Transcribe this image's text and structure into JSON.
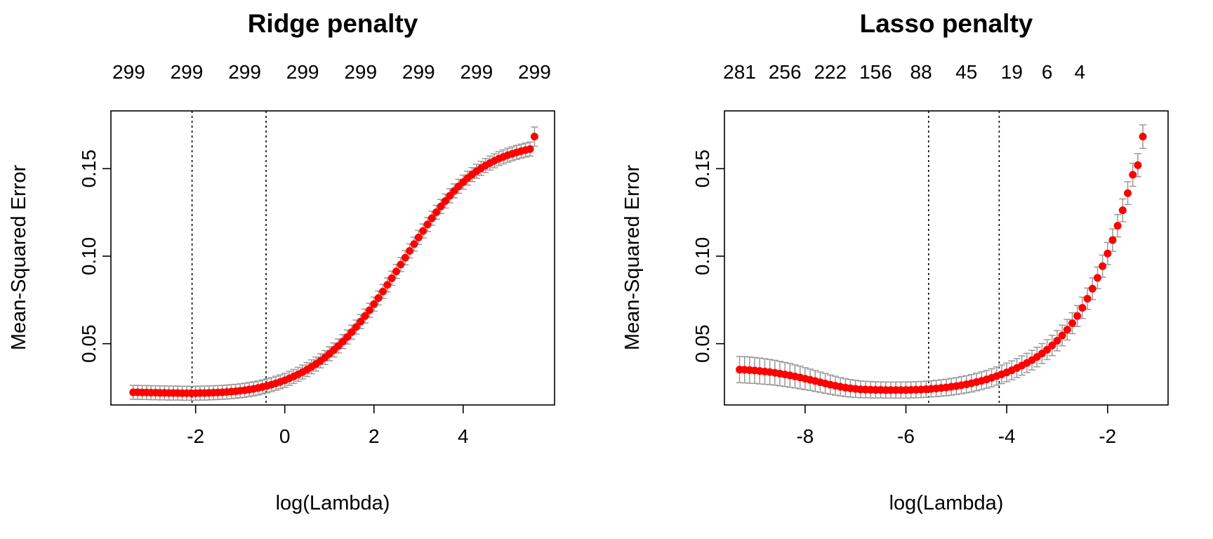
{
  "chart_data": [
    {
      "type": "scatter",
      "title": "Ridge penalty",
      "xlabel": "log(Lambda)",
      "ylabel": "Mean-Squared Error",
      "xlim": [
        -3.9,
        6.05
      ],
      "ylim": [
        0.015,
        0.183
      ],
      "x_ticks": [
        "-2",
        "0",
        "2",
        "4"
      ],
      "x_tick_values": [
        -2,
        0,
        2,
        4
      ],
      "y_ticks": [
        "0.05",
        "0.10",
        "0.15"
      ],
      "y_tick_values": [
        0.05,
        0.1,
        0.15
      ],
      "top_labels": [
        "299",
        "299",
        "299",
        "299",
        "299",
        "299",
        "299",
        "299"
      ],
      "top_label_positions": [
        -3.5,
        -2.2,
        -0.9,
        0.4,
        1.7,
        3.0,
        4.3,
        5.6
      ],
      "vlines": [
        -2.08,
        -0.42
      ],
      "point_color": "#ff0000",
      "errorbar_color": "#999999",
      "series": [
        {
          "x": [
            -3.4,
            -3.3,
            -3.2,
            -3.1,
            -3.0,
            -2.9,
            -2.8,
            -2.7,
            -2.6,
            -2.5,
            -2.4,
            -2.3,
            -2.2,
            -2.1,
            -2.0,
            -1.9,
            -1.8,
            -1.7,
            -1.6,
            -1.5,
            -1.4,
            -1.3,
            -1.2,
            -1.1,
            -1.0,
            -0.9,
            -0.8,
            -0.7,
            -0.6,
            -0.5,
            -0.4,
            -0.3,
            -0.2,
            -0.1,
            0.0,
            0.1,
            0.2,
            0.3,
            0.4,
            0.5,
            0.6,
            0.7,
            0.8,
            0.9,
            1.0,
            1.1,
            1.2,
            1.3,
            1.4,
            1.5,
            1.6,
            1.7,
            1.8,
            1.9,
            2.0,
            2.1,
            2.2,
            2.3,
            2.4,
            2.5,
            2.6,
            2.7,
            2.8,
            2.9,
            3.0,
            3.1,
            3.2,
            3.3,
            3.4,
            3.5,
            3.6,
            3.7,
            3.8,
            3.9,
            4.0,
            4.1,
            4.2,
            4.3,
            4.4,
            4.5,
            4.6,
            4.7,
            4.8,
            4.9,
            5.0,
            5.1,
            5.2,
            5.3,
            5.4,
            5.5,
            5.6
          ],
          "y": [
            0.0222,
            0.0222,
            0.0221,
            0.0221,
            0.022,
            0.022,
            0.0219,
            0.0219,
            0.0218,
            0.0218,
            0.0218,
            0.0217,
            0.0217,
            0.0217,
            0.0217,
            0.0218,
            0.0218,
            0.0219,
            0.022,
            0.0221,
            0.0222,
            0.0224,
            0.0226,
            0.0228,
            0.0231,
            0.0234,
            0.0238,
            0.0242,
            0.0247,
            0.0253,
            0.0259,
            0.0266,
            0.0274,
            0.0282,
            0.0291,
            0.0302,
            0.0313,
            0.0325,
            0.0338,
            0.0352,
            0.0368,
            0.0384,
            0.0402,
            0.0421,
            0.0442,
            0.0464,
            0.0487,
            0.0512,
            0.0538,
            0.0566,
            0.0595,
            0.0626,
            0.0658,
            0.0691,
            0.0726,
            0.0761,
            0.0798,
            0.0836,
            0.0874,
            0.0913,
            0.0952,
            0.0991,
            0.103,
            0.1069,
            0.1107,
            0.1144,
            0.1181,
            0.1217,
            0.1251,
            0.1284,
            0.1315,
            0.1345,
            0.1373,
            0.1399,
            0.1423,
            0.1446,
            0.1466,
            0.1485,
            0.1502,
            0.1518,
            0.1532,
            0.1545,
            0.1557,
            0.1567,
            0.1577,
            0.1585,
            0.1593,
            0.16,
            0.1606,
            0.1612,
            0.1683
          ],
          "se": [
            0.004,
            0.004,
            0.004,
            0.004,
            0.004,
            0.004,
            0.004,
            0.004,
            0.004,
            0.004,
            0.004,
            0.004,
            0.004,
            0.004,
            0.004,
            0.004,
            0.004,
            0.004,
            0.004,
            0.004,
            0.004,
            0.004,
            0.004,
            0.004,
            0.004,
            0.004,
            0.004,
            0.004,
            0.004,
            0.004,
            0.004,
            0.004,
            0.004,
            0.004,
            0.004,
            0.004,
            0.004,
            0.004,
            0.004,
            0.004,
            0.004,
            0.004,
            0.004,
            0.004,
            0.004,
            0.004,
            0.004,
            0.004,
            0.004,
            0.004,
            0.004,
            0.004,
            0.004,
            0.004,
            0.004,
            0.004,
            0.004,
            0.004,
            0.004,
            0.004,
            0.004,
            0.004,
            0.004,
            0.004,
            0.004,
            0.004,
            0.004,
            0.004,
            0.004,
            0.004,
            0.004,
            0.004,
            0.004,
            0.004,
            0.004,
            0.004,
            0.004,
            0.004,
            0.004,
            0.004,
            0.004,
            0.004,
            0.004,
            0.004,
            0.004,
            0.004,
            0.004,
            0.004,
            0.004,
            0.004,
            0.0055
          ]
        }
      ]
    },
    {
      "type": "scatter",
      "title": "Lasso penalty",
      "xlabel": "log(Lambda)",
      "ylabel": "Mean-Squared Error",
      "xlim": [
        -9.6,
        -0.8
      ],
      "ylim": [
        0.015,
        0.183
      ],
      "x_ticks": [
        "-8",
        "-6",
        "-4",
        "-2"
      ],
      "x_tick_values": [
        -8,
        -6,
        -4,
        -2
      ],
      "y_ticks": [
        "0.05",
        "0.10",
        "0.15"
      ],
      "y_tick_values": [
        0.05,
        0.1,
        0.15
      ],
      "top_labels": [
        "281",
        "256",
        "222",
        "156",
        "88",
        "45",
        "19",
        "6",
        "4"
      ],
      "top_label_positions": [
        -9.3,
        -8.4,
        -7.5,
        -6.6,
        -5.7,
        -4.8,
        -3.9,
        -3.2,
        -2.55
      ],
      "vlines": [
        -5.55,
        -4.15
      ],
      "point_color": "#ff0000",
      "errorbar_color": "#999999",
      "series": [
        {
          "x": [
            -9.3,
            -9.2,
            -9.1,
            -9.0,
            -8.9,
            -8.8,
            -8.7,
            -8.6,
            -8.5,
            -8.4,
            -8.3,
            -8.2,
            -8.1,
            -8.0,
            -7.9,
            -7.8,
            -7.7,
            -7.6,
            -7.5,
            -7.4,
            -7.3,
            -7.2,
            -7.1,
            -7.0,
            -6.9,
            -6.8,
            -6.7,
            -6.6,
            -6.5,
            -6.4,
            -6.3,
            -6.2,
            -6.1,
            -6.0,
            -5.9,
            -5.8,
            -5.7,
            -5.6,
            -5.5,
            -5.4,
            -5.3,
            -5.2,
            -5.1,
            -5.0,
            -4.9,
            -4.8,
            -4.7,
            -4.6,
            -4.5,
            -4.4,
            -4.3,
            -4.2,
            -4.1,
            -4.0,
            -3.9,
            -3.8,
            -3.7,
            -3.6,
            -3.5,
            -3.4,
            -3.3,
            -3.2,
            -3.1,
            -3.0,
            -2.9,
            -2.8,
            -2.7,
            -2.6,
            -2.5,
            -2.4,
            -2.3,
            -2.2,
            -2.1,
            -2.0,
            -1.9,
            -1.8,
            -1.7,
            -1.6,
            -1.5,
            -1.4,
            -1.3
          ],
          "y": [
            0.0352,
            0.0351,
            0.0349,
            0.0347,
            0.0344,
            0.0341,
            0.0338,
            0.0334,
            0.0329,
            0.0324,
            0.0319,
            0.0313,
            0.0307,
            0.03,
            0.0294,
            0.0287,
            0.028,
            0.0273,
            0.0266,
            0.026,
            0.0254,
            0.0249,
            0.0245,
            0.0242,
            0.0239,
            0.0238,
            0.0237,
            0.0236,
            0.0236,
            0.0235,
            0.0235,
            0.0235,
            0.0235,
            0.0235,
            0.0236,
            0.0237,
            0.0238,
            0.024,
            0.0242,
            0.0244,
            0.0247,
            0.025,
            0.0254,
            0.0258,
            0.0263,
            0.0268,
            0.0274,
            0.0281,
            0.0288,
            0.0296,
            0.0305,
            0.0315,
            0.0325,
            0.0336,
            0.0348,
            0.0361,
            0.0375,
            0.039,
            0.0406,
            0.0424,
            0.0444,
            0.0466,
            0.049,
            0.0517,
            0.0547,
            0.058,
            0.0617,
            0.0658,
            0.0705,
            0.0757,
            0.0814,
            0.0876,
            0.0943,
            0.1015,
            0.1092,
            0.1174,
            0.1262,
            0.136,
            0.1465,
            0.152,
            0.1683
          ],
          "se": [
            0.0075,
            0.0075,
            0.0075,
            0.0074,
            0.0074,
            0.0073,
            0.0072,
            0.0071,
            0.007,
            0.0069,
            0.0068,
            0.0066,
            0.0065,
            0.0063,
            0.0061,
            0.006,
            0.0058,
            0.0057,
            0.0055,
            0.0054,
            0.0052,
            0.0051,
            0.005,
            0.0049,
            0.0048,
            0.0047,
            0.0047,
            0.0046,
            0.0046,
            0.0046,
            0.0046,
            0.0046,
            0.0046,
            0.0046,
            0.0046,
            0.0046,
            0.0046,
            0.0046,
            0.0046,
            0.0047,
            0.0047,
            0.0047,
            0.0048,
            0.0048,
            0.0049,
            0.0049,
            0.005,
            0.005,
            0.0051,
            0.0051,
            0.0052,
            0.0052,
            0.0053,
            0.0053,
            0.0054,
            0.0054,
            0.0055,
            0.0055,
            0.0056,
            0.0056,
            0.0057,
            0.0057,
            0.0058,
            0.0058,
            0.0059,
            0.0059,
            0.006,
            0.006,
            0.0061,
            0.0061,
            0.0062,
            0.0062,
            0.0063,
            0.0063,
            0.0064,
            0.0064,
            0.0065,
            0.0065,
            0.0066,
            0.0066,
            0.0067
          ]
        }
      ]
    }
  ]
}
